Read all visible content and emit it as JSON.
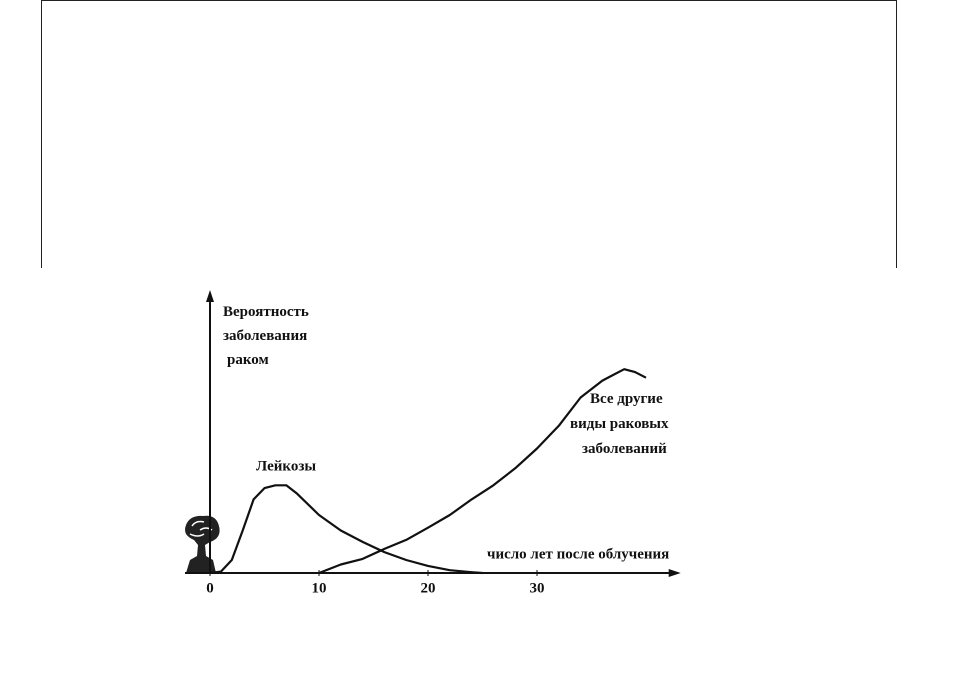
{
  "chart_data": {
    "type": "line",
    "x_label": "число лет после облучения",
    "y_label": "Вероятность заболевания раком",
    "xlim": [
      0,
      43
    ],
    "xticks": [
      0,
      10,
      20,
      30
    ],
    "ylim": [
      0,
      100
    ],
    "grid": false,
    "series": [
      {
        "name": "Лейкозы",
        "color": "#111111",
        "x": [
          0,
          1,
          2,
          3,
          4,
          5,
          6,
          7,
          8,
          10,
          12,
          14,
          16,
          18,
          20,
          22,
          24,
          25
        ],
        "values": [
          0,
          0.5,
          4.6,
          15,
          26,
          30,
          31,
          31,
          28,
          20.5,
          15,
          11,
          7.4,
          4.6,
          2.5,
          1,
          0.3,
          0
        ]
      },
      {
        "name": "Все другие виды раковых заболеваний",
        "color": "#111111",
        "x": [
          10,
          12,
          14,
          16,
          18,
          20,
          22,
          24,
          26,
          28,
          30,
          32,
          34,
          36,
          37,
          38,
          39,
          40
        ],
        "values": [
          0,
          3,
          5,
          8.5,
          11.7,
          16,
          20.5,
          26,
          31,
          37,
          44,
          52,
          62,
          68,
          70,
          72,
          71,
          69
        ]
      }
    ]
  }
}
